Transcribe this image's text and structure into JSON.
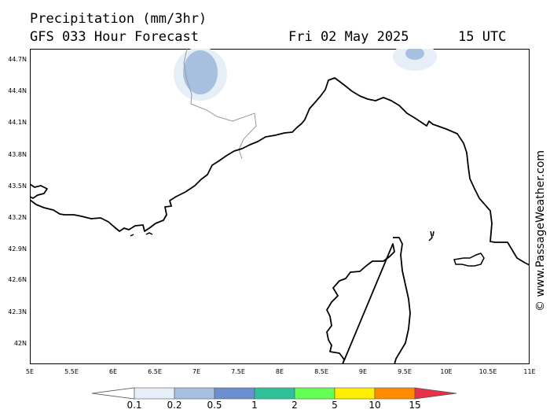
{
  "header": {
    "title": "Precipitation (mm/3hr)",
    "subtitle": "GFS 033 Hour Forecast",
    "date": "Fri 02 May 2025",
    "time": "15 UTC"
  },
  "map": {
    "lat_ticks": [
      "44.7N",
      "44.4N",
      "44.1N",
      "43.8N",
      "43.5N",
      "43.2N",
      "42.9N",
      "42.6N",
      "42.3N",
      "42N"
    ],
    "lon_ticks": [
      "5E",
      "5.5E",
      "6E",
      "6.5E",
      "7E",
      "7.5E",
      "8E",
      "8.5E",
      "9E",
      "9.5E",
      "10E",
      "10.5E",
      "11E"
    ],
    "lat_range": [
      41.87,
      44.79
    ],
    "lon_range": [
      5.0,
      11.0
    ]
  },
  "watermark": "© www.PassageWeather.com",
  "legend": {
    "labels": [
      "0.1",
      "0.2",
      "0.5",
      "1",
      "2",
      "5",
      "10",
      "15"
    ],
    "colors": [
      "#ffffff",
      "#e6eef8",
      "#a8c0e0",
      "#6c8fcf",
      "#2fc29a",
      "#66ff55",
      "#ffee00",
      "#ff8c00",
      "#e8304a"
    ]
  }
}
